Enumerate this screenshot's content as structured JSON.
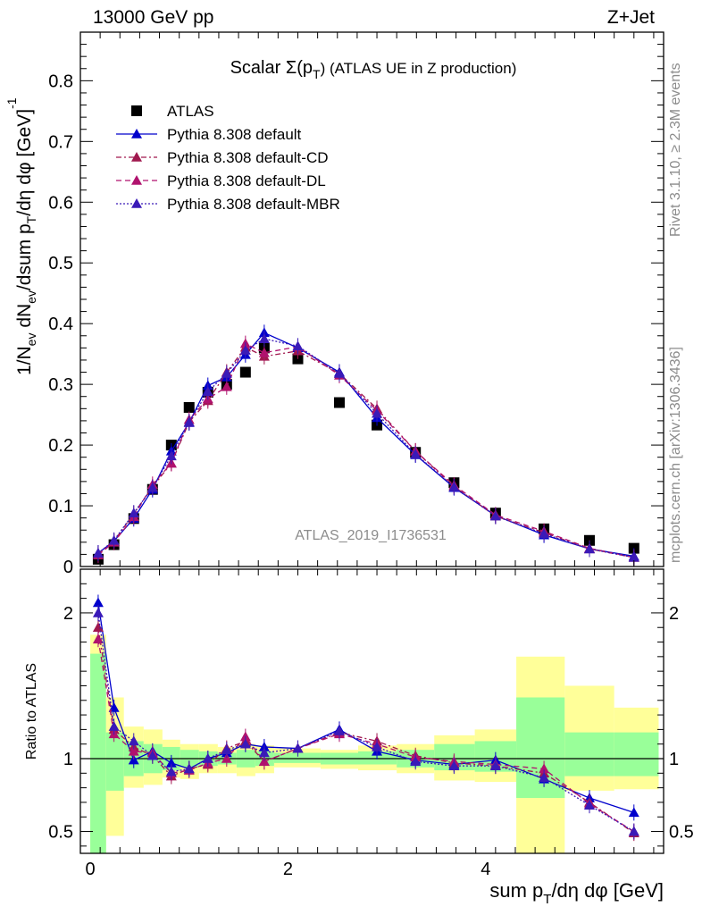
{
  "header": {
    "left_title": "13000 GeV pp",
    "right_title": "Z+Jet"
  },
  "side_labels": {
    "rivet": "Rivet 3.1.10, ≥ 2.3M events",
    "mcplots": "mcplots.cern.ch [arXiv:1306.3436]"
  },
  "chart_data": [
    {
      "type": "scatter",
      "panel": "main",
      "title": "Scalar Σ(p_T) (ATLAS UE in Z production)",
      "title_parts": {
        "pre": "Scalar ",
        "sigma": "Σ(p",
        "sub": "T",
        "post": ") (ATLAS UE in Z production)"
      },
      "ylabel": "1/N_ev dN_ev/dsum p_T/dη dφ [GeV]^-1",
      "ylabel_parts": [
        "1/N",
        "ev",
        " dN",
        "ev",
        "/dsum p",
        "T",
        "/dη dφ  [GeV]",
        "-1"
      ],
      "xlim": [
        -0.1,
        5.8
      ],
      "ylim": [
        0,
        0.88
      ],
      "yticks": [
        0,
        0.1,
        0.2,
        0.3,
        0.4,
        0.5,
        0.6,
        0.7,
        0.8
      ],
      "ytick_labels": [
        "0",
        "0.1",
        "0.2",
        "0.3",
        "0.4",
        "0.5",
        "0.6",
        "0.7",
        "0.8"
      ],
      "watermark": "ATLAS_2019_I1736531",
      "legend_position": "top-left",
      "x": [
        0.08,
        0.24,
        0.44,
        0.63,
        0.82,
        1.0,
        1.19,
        1.38,
        1.57,
        1.76,
        2.1,
        2.52,
        2.9,
        3.29,
        3.68,
        4.1,
        4.59,
        5.05,
        5.5
      ],
      "series": [
        {
          "name": "ATLAS",
          "style": "data",
          "color": "#000000",
          "values": [
            0.012,
            0.036,
            0.079,
            0.127,
            0.2,
            0.262,
            0.287,
            0.3,
            0.32,
            0.36,
            0.342,
            0.27,
            0.233,
            0.188,
            0.138,
            0.088,
            0.062,
            0.043,
            0.03
          ]
        },
        {
          "name": "Pythia 8.308 default",
          "style": "solid",
          "color": "#0000cc",
          "values": [
            0.022,
            0.042,
            0.079,
            0.127,
            0.19,
            0.237,
            0.298,
            0.312,
            0.349,
            0.385,
            0.36,
            0.32,
            0.245,
            0.184,
            0.13,
            0.084,
            0.052,
            0.029,
            0.017
          ]
        },
        {
          "name": "Pythia 8.308 default-CD",
          "style": "dashdot",
          "color": "#a0184e",
          "values": [
            0.021,
            0.042,
            0.087,
            0.131,
            0.17,
            0.238,
            0.273,
            0.32,
            0.361,
            0.346,
            0.355,
            0.318,
            0.26,
            0.19,
            0.132,
            0.083,
            0.056,
            0.029,
            0.015
          ]
        },
        {
          "name": "Pythia 8.308 default-DL",
          "style": "dashed",
          "color": "#b0126e",
          "values": [
            0.019,
            0.04,
            0.082,
            0.135,
            0.17,
            0.242,
            0.276,
            0.296,
            0.367,
            0.352,
            0.362,
            0.315,
            0.257,
            0.19,
            0.134,
            0.085,
            0.058,
            0.03,
            0.015
          ]
        },
        {
          "name": "Pythia 8.308 default-MBR",
          "style": "dotted",
          "color": "#3a1ab8",
          "values": [
            0.022,
            0.043,
            0.088,
            0.13,
            0.182,
            0.238,
            0.288,
            0.318,
            0.356,
            0.375,
            0.363,
            0.318,
            0.252,
            0.185,
            0.131,
            0.083,
            0.054,
            0.029,
            0.015
          ]
        }
      ]
    },
    {
      "type": "scatter",
      "panel": "ratio",
      "ylabel": "Ratio to ATLAS",
      "xlabel": "sum p_T/dη dφ [GeV]",
      "xlabel_parts": [
        "sum p",
        "T",
        "/dη dφ [GeV]"
      ],
      "xlim": [
        -0.1,
        5.8
      ],
      "ylim": [
        0.35,
        2.3
      ],
      "yticks": [
        0.5,
        1,
        2
      ],
      "ytick_labels": [
        "0.5",
        "1",
        "2"
      ],
      "xticks": [
        0,
        2,
        4
      ],
      "xtick_labels": [
        "0",
        "2",
        "4"
      ],
      "x": [
        0.08,
        0.24,
        0.44,
        0.63,
        0.82,
        1.0,
        1.19,
        1.38,
        1.57,
        1.76,
        2.1,
        2.52,
        2.9,
        3.29,
        3.68,
        4.1,
        4.59,
        5.05,
        5.5
      ],
      "bin_edges": [
        0.0,
        0.16,
        0.34,
        0.54,
        0.73,
        0.91,
        1.1,
        1.29,
        1.48,
        1.67,
        1.86,
        2.33,
        2.71,
        3.1,
        3.48,
        3.89,
        4.31,
        4.8,
        5.3,
        5.75
      ],
      "band_yellow_low": [
        0.35,
        0.47,
        0.8,
        0.82,
        0.87,
        0.86,
        0.9,
        0.9,
        0.88,
        0.9,
        0.94,
        0.93,
        0.92,
        0.9,
        0.85,
        0.84,
        0.35,
        0.78,
        0.79
      ],
      "band_yellow_high": [
        1.85,
        1.42,
        1.22,
        1.2,
        1.13,
        1.1,
        1.1,
        1.08,
        1.1,
        1.09,
        1.07,
        1.06,
        1.09,
        1.1,
        1.16,
        1.2,
        1.7,
        1.5,
        1.35
      ],
      "band_green_low": [
        0.35,
        0.78,
        0.88,
        0.9,
        0.92,
        0.94,
        0.95,
        0.96,
        0.94,
        0.95,
        0.97,
        0.96,
        0.96,
        0.94,
        0.92,
        0.91,
        0.73,
        0.88,
        0.88
      ],
      "band_green_high": [
        1.72,
        1.18,
        1.12,
        1.1,
        1.08,
        1.06,
        1.05,
        1.04,
        1.06,
        1.05,
        1.04,
        1.04,
        1.05,
        1.06,
        1.1,
        1.12,
        1.42,
        1.18,
        1.18
      ],
      "series": [
        {
          "name": "Pythia 8.308 default",
          "style": "solid",
          "color": "#0000cc",
          "values": [
            2.07,
            1.35,
            0.99,
            1.05,
            0.97,
            0.93,
            1.0,
            1.04,
            1.1,
            1.08,
            1.07,
            1.2,
            1.05,
            0.99,
            0.96,
            0.99,
            0.86,
            0.73,
            0.63
          ]
        },
        {
          "name": "Pythia 8.308 default-CD",
          "style": "dashdot",
          "color": "#a0184e",
          "values": [
            1.9,
            1.2,
            1.08,
            1.02,
            0.88,
            0.93,
            0.96,
            1.07,
            1.12,
            0.98,
            1.07,
            1.18,
            1.12,
            1.02,
            0.97,
            0.95,
            0.9,
            0.7,
            0.49
          ]
        },
        {
          "name": "Pythia 8.308 default-DL",
          "style": "dashed",
          "color": "#b0126e",
          "values": [
            1.82,
            1.17,
            1.05,
            1.04,
            0.9,
            0.92,
            0.97,
            1.0,
            1.15,
            0.98,
            1.07,
            1.17,
            1.1,
            1.01,
            0.98,
            0.96,
            0.93,
            0.69,
            0.5
          ]
        },
        {
          "name": "Pythia 8.308 default-MBR",
          "style": "dotted",
          "color": "#3a1ab8",
          "values": [
            2.0,
            1.22,
            1.12,
            1.02,
            0.91,
            0.93,
            1.0,
            1.06,
            1.1,
            1.04,
            1.07,
            1.19,
            1.08,
            0.98,
            0.95,
            0.95,
            0.87,
            0.68,
            0.5
          ]
        }
      ]
    }
  ]
}
